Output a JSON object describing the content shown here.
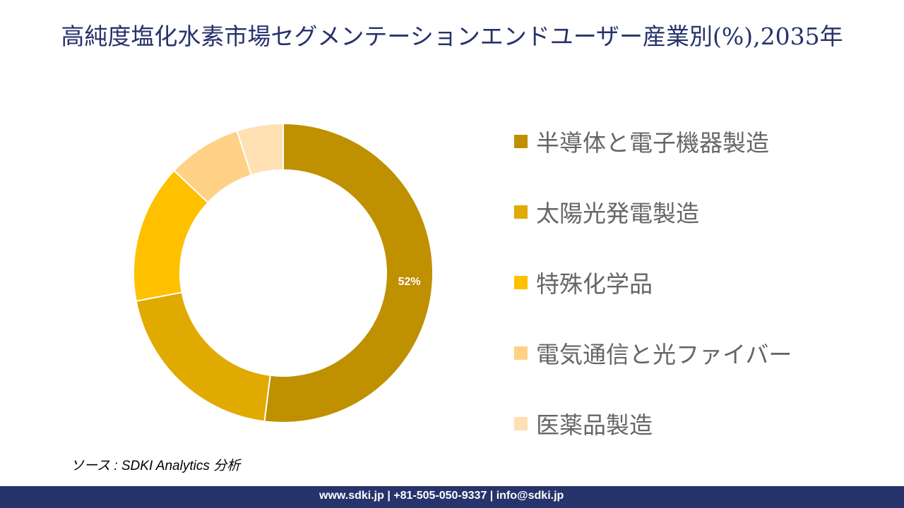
{
  "title": "高純度塩化水素市場セグメンテーションエンドユーザー産業別(%),2035年",
  "chart_data": {
    "type": "pie",
    "donut": true,
    "title": "高純度塩化水素市場セグメンテーションエンドユーザー産業別(%),2035年",
    "categories": [
      "半導体と電子機器製造",
      "太陽光発電製造",
      "特殊化学品",
      "電気通信と光ファイバー",
      "医薬品製造"
    ],
    "values": [
      52,
      20,
      15,
      8,
      5
    ],
    "data_labels": [
      "52%",
      "",
      "",
      "",
      ""
    ],
    "colors": [
      "#bf9000",
      "#e0aa00",
      "#ffc000",
      "#ffd187",
      "#ffe0b3"
    ],
    "legend_position": "right"
  },
  "source": "ソース : SDKI Analytics 分析",
  "footer": "www.sdki.jp | +81-505-050-9337 | info@sdki.jp"
}
